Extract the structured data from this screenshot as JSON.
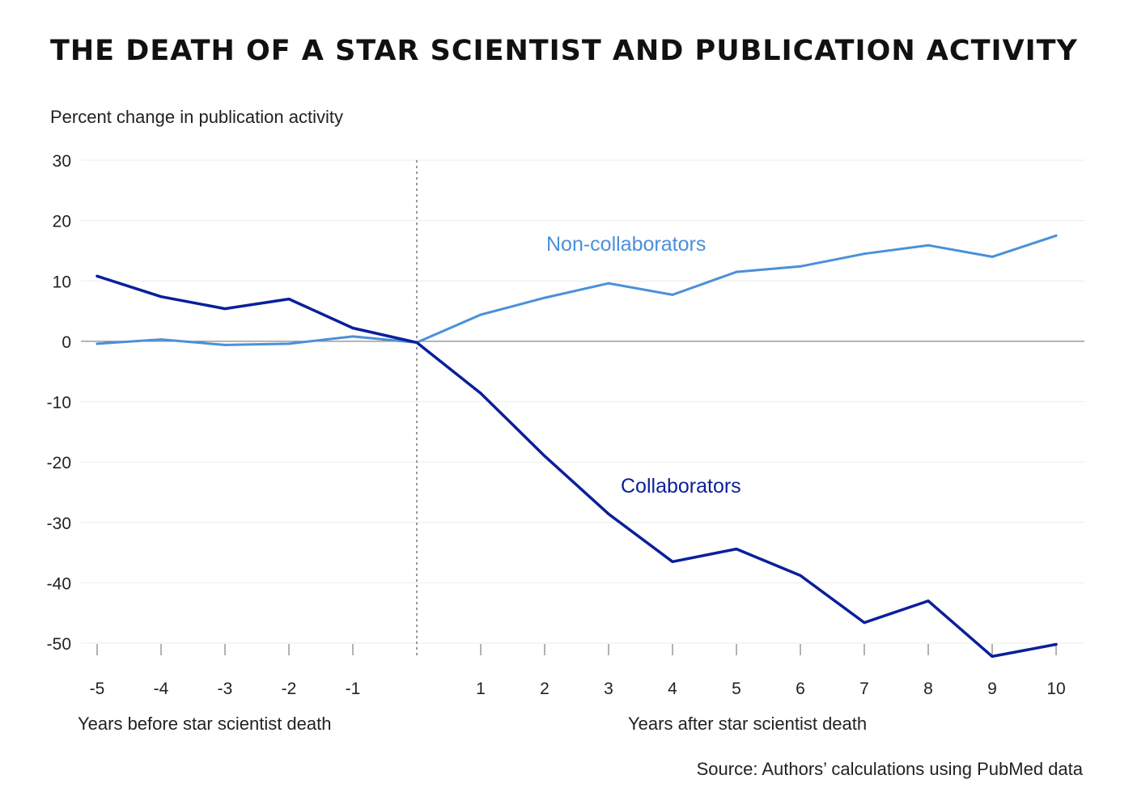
{
  "chart_data": {
    "type": "line",
    "title": "THE DEATH OF A STAR SCIENTIST AND PUBLICATION ACTIVITY",
    "ylabel": "Percent change in publication activity",
    "xlabel_before": "Years before star scientist death",
    "xlabel_after": "Years after star scientist death",
    "source": "Source: Authors’ calculations using PubMed data",
    "x": [
      -5,
      -4,
      -3,
      -2,
      -1,
      0,
      1,
      2,
      3,
      4,
      5,
      6,
      7,
      8,
      9,
      10
    ],
    "x_tick_labels": [
      "-5",
      "-4",
      "-3",
      "-2",
      "-1",
      "",
      "1",
      "2",
      "3",
      "4",
      "5",
      "6",
      "7",
      "8",
      "9",
      "10"
    ],
    "y_ticks": [
      30,
      20,
      10,
      0,
      -10,
      -20,
      -30,
      -40,
      -50
    ],
    "y_tick_labels": [
      "30",
      "20",
      "10",
      "0",
      "-10",
      "-20",
      "-30",
      "-40",
      "-50"
    ],
    "ylim": [
      -50,
      30
    ],
    "xlim": [
      -5,
      10
    ],
    "grid": true,
    "reference_line_x": 0,
    "series": [
      {
        "name": "Non-collaborators",
        "color": "#4a90d9",
        "values": [
          -0.4,
          0.3,
          -0.6,
          -0.4,
          0.8,
          -0.2,
          4.4,
          7.2,
          9.6,
          7.7,
          11.5,
          12.4,
          14.5,
          15.9,
          14.0,
          17.5
        ]
      },
      {
        "name": "Collaborators",
        "color": "#0a1f9a",
        "values": [
          10.8,
          7.4,
          5.4,
          7.0,
          2.2,
          -0.2,
          -8.6,
          -19.0,
          -28.6,
          -36.5,
          -34.4,
          -38.8,
          -46.6,
          -43.0,
          -52.2,
          -50.2
        ]
      }
    ]
  }
}
